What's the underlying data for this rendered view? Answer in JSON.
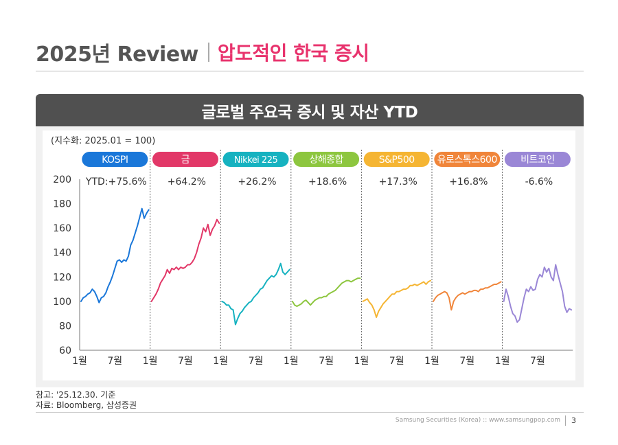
{
  "header": {
    "title_main": "2025년 Review",
    "title_sub": "압도적인 한국 증시"
  },
  "panel": {
    "title": "글로벌 주요국 증시 및 자산 YTD"
  },
  "chart_data": {
    "type": "line",
    "unit_label": "(지수화: 2025.01 = 100)",
    "ylim": [
      60,
      200
    ],
    "yticks": [
      60,
      80,
      100,
      120,
      140,
      160,
      180,
      200
    ],
    "x_tick_labels": [
      "1월",
      "7월"
    ],
    "x_end_label": "1월",
    "series": [
      {
        "name": "KOSPI",
        "ytd_label": "YTD:+75.6%",
        "color": "#1a77d9",
        "values": [
          100,
          103,
          104,
          106,
          107,
          110,
          108,
          104,
          99,
          103,
          104,
          107,
          112,
          116,
          121,
          127,
          133,
          134,
          132,
          134,
          133,
          137,
          146,
          150,
          156,
          162,
          169,
          176,
          168,
          172,
          175
        ]
      },
      {
        "name": "금",
        "ytd_label": "+64.2%",
        "color": "#e23868",
        "values": [
          100,
          103,
          106,
          110,
          115,
          118,
          121,
          126,
          123,
          127,
          126,
          128,
          126,
          128,
          127,
          128,
          130,
          130,
          132,
          135,
          140,
          147,
          152,
          160,
          157,
          163,
          154,
          159,
          162,
          167,
          164
        ]
      },
      {
        "name": "Nikkei 225",
        "ytd_label": "+26.2%",
        "color": "#16b2c0",
        "values": [
          100,
          99,
          97,
          97,
          94,
          93,
          81,
          86,
          90,
          92,
          95,
          97,
          99,
          100,
          103,
          105,
          107,
          110,
          111,
          114,
          117,
          119,
          121,
          120,
          122,
          126,
          131,
          124,
          122,
          124,
          126
        ]
      },
      {
        "name": "상해종합",
        "ytd_label": "+18.6%",
        "color": "#8dc63f",
        "values": [
          100,
          97,
          96,
          97,
          98,
          100,
          101,
          99,
          97,
          99,
          101,
          102,
          103,
          103,
          104,
          104,
          106,
          107,
          108,
          109,
          111,
          113,
          115,
          116,
          117,
          117,
          116,
          117,
          118,
          119,
          119
        ]
      },
      {
        "name": "S&P500",
        "ytd_label": "+17.3%",
        "color": "#f5b533",
        "values": [
          100,
          101,
          102,
          99,
          97,
          93,
          87,
          92,
          95,
          98,
          100,
          102,
          104,
          106,
          106,
          108,
          108,
          109,
          110,
          110,
          111,
          113,
          113,
          114,
          113,
          114,
          115,
          116,
          114,
          116,
          117
        ]
      },
      {
        "name": "유로스톡스600",
        "ytd_label": "+16.8%",
        "color": "#f0853a",
        "values": [
          100,
          103,
          105,
          106,
          107,
          108,
          107,
          103,
          93,
          100,
          103,
          105,
          106,
          107,
          106,
          107,
          108,
          108,
          109,
          109,
          108,
          110,
          110,
          111,
          111,
          112,
          113,
          114,
          114,
          115,
          116
        ]
      },
      {
        "name": "비트코인",
        "ytd_label": "-6.6%",
        "color": "#9a87d6",
        "values": [
          100,
          110,
          104,
          96,
          90,
          88,
          83,
          85,
          94,
          103,
          110,
          108,
          112,
          109,
          110,
          118,
          122,
          120,
          128,
          124,
          127,
          120,
          117,
          130,
          122,
          115,
          108,
          96,
          91,
          94,
          93
        ]
      }
    ]
  },
  "notes": {
    "line1": "참고: '25.12.30. 기준",
    "line2": "자료: Bloomberg, 삼성증권"
  },
  "footer": {
    "text": "Samsung Securities (Korea) :: www.samsungpop.com",
    "page": "3"
  }
}
